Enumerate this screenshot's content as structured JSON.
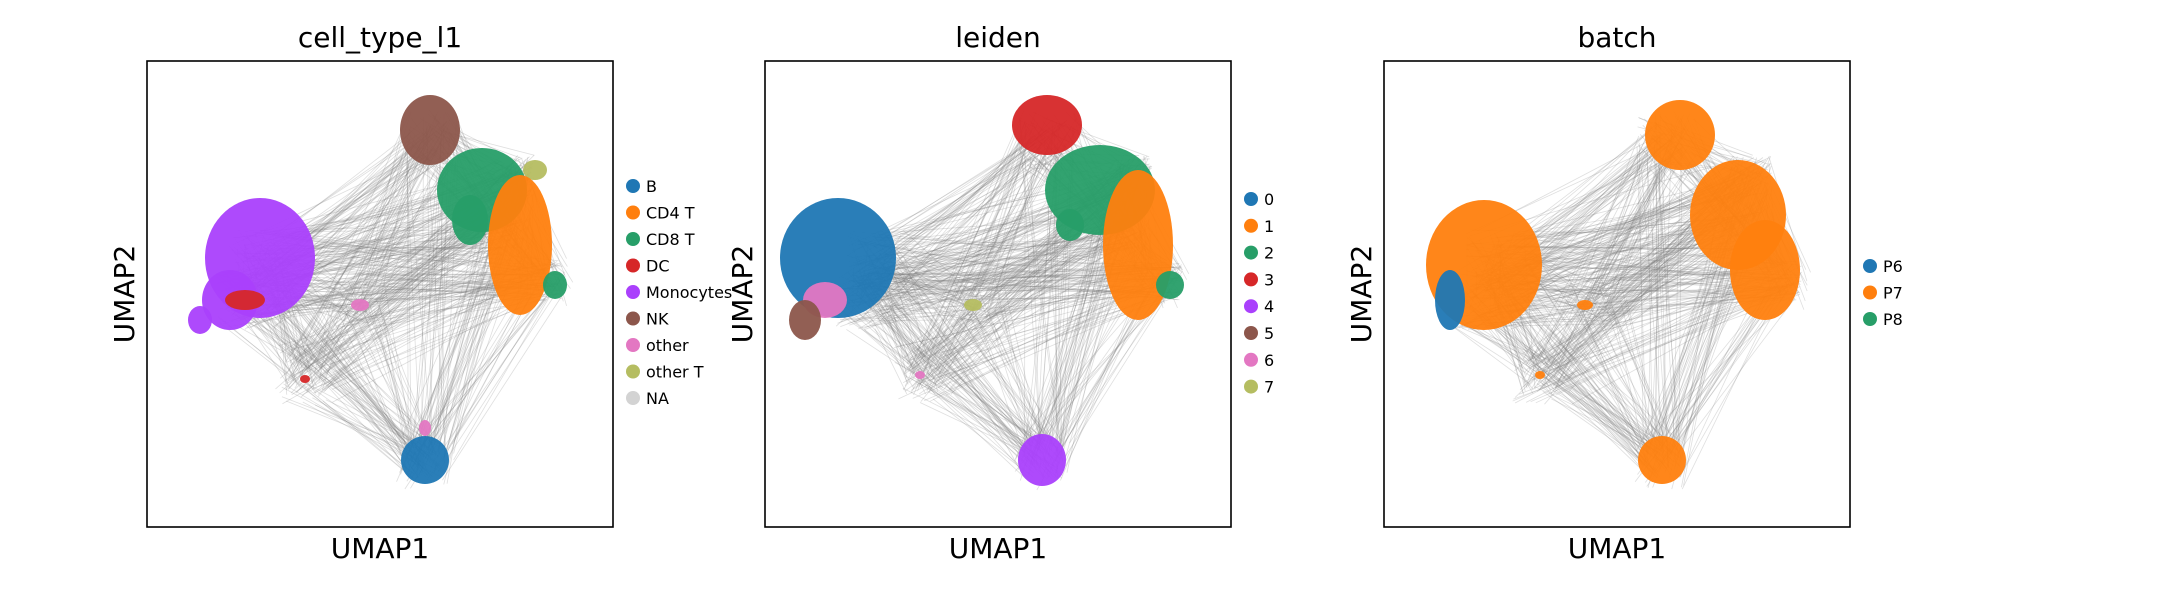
{
  "chart_data": [
    {
      "type": "scatter",
      "title": "cell_type_l1",
      "xlabel": "UMAP1",
      "ylabel": "UMAP2",
      "grid": false,
      "legend_position": "right",
      "legend": [
        {
          "label": "B",
          "color": "#1f77b4"
        },
        {
          "label": "CD4 T",
          "color": "#ff7f0e"
        },
        {
          "label": "CD8 T",
          "color": "#279e68"
        },
        {
          "label": "DC",
          "color": "#d62728"
        },
        {
          "label": "Monocytes",
          "color": "#aa40fc"
        },
        {
          "label": "NK",
          "color": "#8c564b"
        },
        {
          "label": "other",
          "color": "#e377c2"
        },
        {
          "label": "other T",
          "color": "#b5bd61"
        },
        {
          "label": "NA",
          "color": "#d3d3d3"
        }
      ]
    },
    {
      "type": "scatter",
      "title": "leiden",
      "xlabel": "UMAP1",
      "ylabel": "UMAP2",
      "grid": false,
      "legend_position": "right",
      "legend": [
        {
          "label": "0",
          "color": "#1f77b4"
        },
        {
          "label": "1",
          "color": "#ff7f0e"
        },
        {
          "label": "2",
          "color": "#279e68"
        },
        {
          "label": "3",
          "color": "#d62728"
        },
        {
          "label": "4",
          "color": "#aa40fc"
        },
        {
          "label": "5",
          "color": "#8c564b"
        },
        {
          "label": "6",
          "color": "#e377c2"
        },
        {
          "label": "7",
          "color": "#b5bd61"
        }
      ]
    },
    {
      "type": "scatter",
      "title": "batch",
      "xlabel": "UMAP1",
      "ylabel": "UMAP2",
      "grid": false,
      "legend_position": "right",
      "legend": [
        {
          "label": "P6",
          "color": "#1f77b4"
        },
        {
          "label": "P7",
          "color": "#ff7f0e"
        },
        {
          "label": "P8",
          "color": "#279e68"
        }
      ]
    }
  ]
}
